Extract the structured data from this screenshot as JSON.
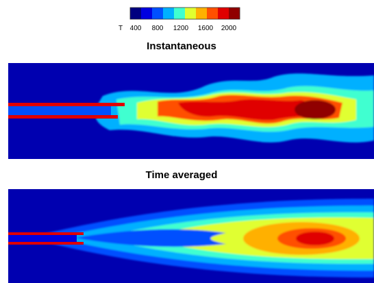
{
  "colorbar": {
    "label": "T",
    "ticks": [
      "400",
      "800",
      "1200",
      "1600",
      "2000"
    ],
    "colors": [
      "#000080",
      "#0000e0",
      "#0050ff",
      "#00b0ff",
      "#40ffd0",
      "#e0ff30",
      "#ffb000",
      "#ff5000",
      "#e00000",
      "#900000"
    ]
  },
  "panels": [
    {
      "title": "Instantaneous"
    },
    {
      "title": "Time averaged"
    }
  ]
}
